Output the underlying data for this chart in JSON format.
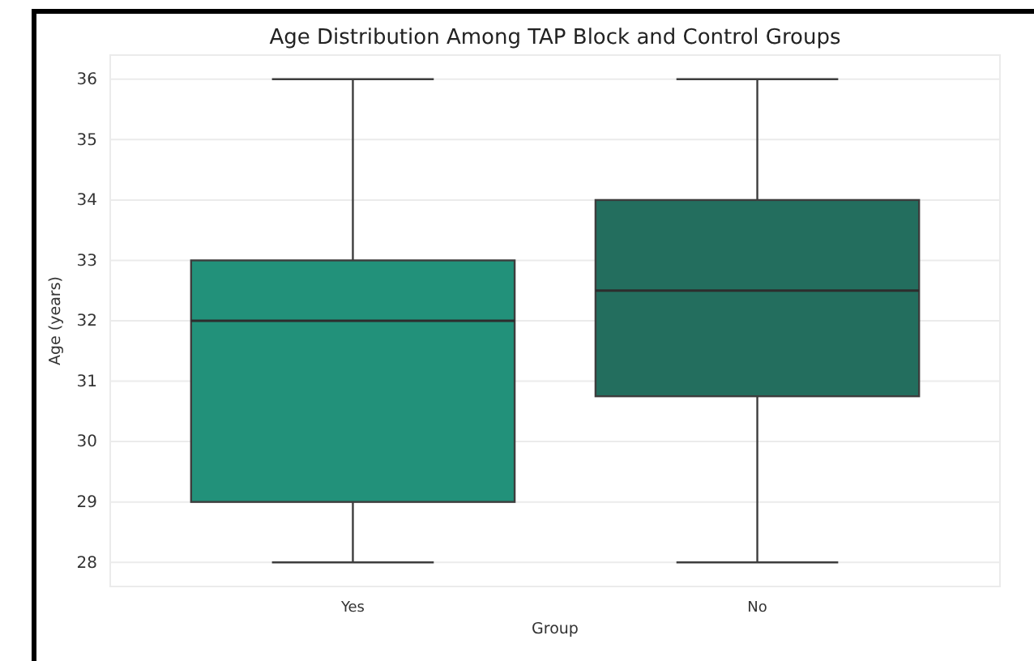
{
  "chart_data": {
    "type": "box",
    "title": "Age Distribution Among TAP Block and Control Groups",
    "xlabel": "Group",
    "ylabel": "Age (years)",
    "categories": [
      "Yes",
      "No"
    ],
    "boxes": [
      {
        "low": 28,
        "q1": 29,
        "median": 32,
        "q3": 33,
        "high": 36
      },
      {
        "low": 28,
        "q1": 30.75,
        "median": 32.5,
        "q3": 34,
        "high": 36
      }
    ],
    "colors": [
      "#22917a",
      "#236e5e"
    ],
    "ylim": [
      27.6,
      36.4
    ],
    "yticks": [
      28,
      29,
      30,
      31,
      32,
      33,
      34,
      35,
      36
    ],
    "grid": "y"
  }
}
